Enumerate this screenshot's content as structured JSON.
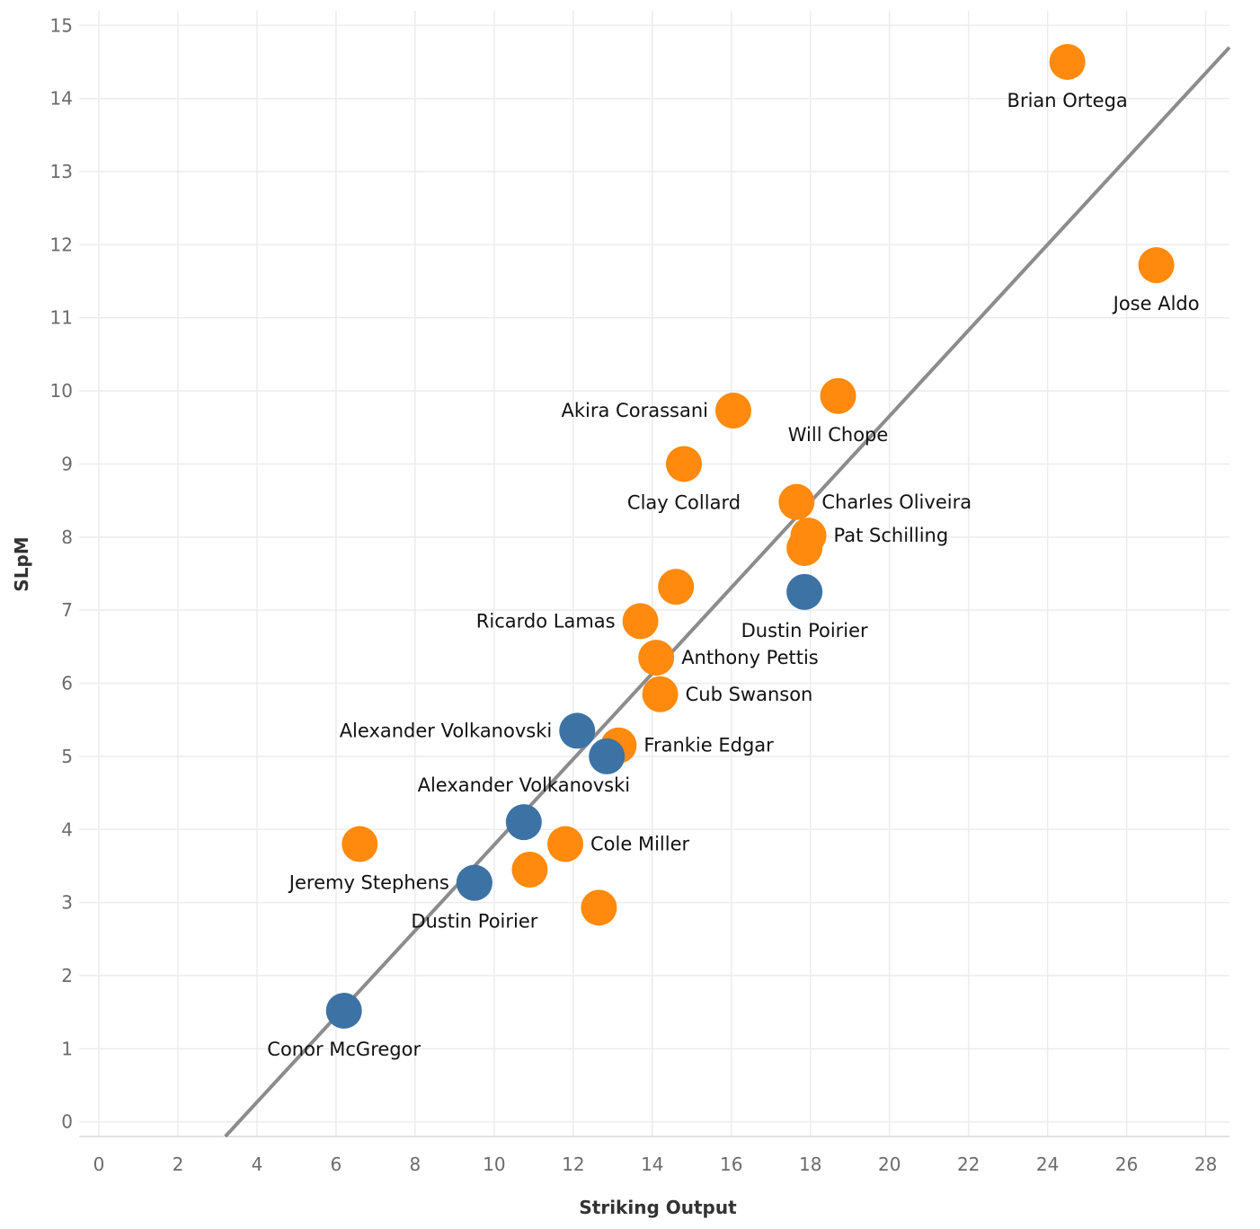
{
  "chart_data": {
    "type": "scatter",
    "title": "",
    "xlabel": "Striking Output",
    "ylabel": "SLpM",
    "xlim": [
      -0.5,
      28.6
    ],
    "ylim": [
      -0.2,
      15.2
    ],
    "x_ticks": [
      0,
      2,
      4,
      6,
      8,
      10,
      12,
      14,
      16,
      18,
      20,
      22,
      24,
      26,
      28
    ],
    "y_ticks": [
      0,
      1,
      2,
      3,
      4,
      5,
      6,
      7,
      8,
      9,
      10,
      11,
      12,
      13,
      14,
      15
    ],
    "grid": true,
    "legend": "none",
    "trend_line": {
      "x": [
        3.2,
        28.6
      ],
      "y": [
        -0.2,
        14.7
      ]
    },
    "colors": {
      "orange": "#ff8a0d",
      "blue": "#3d72a4",
      "trend": "#8c8c8c"
    },
    "series": [
      {
        "color": "orange",
        "points": [
          {
            "x": 24.5,
            "y": 14.5,
            "label": "Brian Ortega",
            "label_pos": "below"
          },
          {
            "x": 26.75,
            "y": 11.72,
            "label": "Jose Aldo",
            "label_pos": "below"
          },
          {
            "x": 18.7,
            "y": 9.93,
            "label": "Will Chope",
            "label_pos": "below"
          },
          {
            "x": 16.05,
            "y": 9.73,
            "label": "Akira Corassani",
            "label_pos": "left"
          },
          {
            "x": 14.8,
            "y": 9.0,
            "label": "Clay Collard",
            "label_pos": "below"
          },
          {
            "x": 17.65,
            "y": 8.48,
            "label": "Charles Oliveira",
            "label_pos": "right"
          },
          {
            "x": 17.95,
            "y": 8.02,
            "label": "Pat Schilling",
            "label_pos": "right"
          },
          {
            "x": 17.85,
            "y": 7.85,
            "label": "",
            "label_pos": "none"
          },
          {
            "x": 14.6,
            "y": 7.32,
            "label": "",
            "label_pos": "none"
          },
          {
            "x": 13.7,
            "y": 6.85,
            "label": "Ricardo Lamas",
            "label_pos": "left"
          },
          {
            "x": 14.1,
            "y": 6.35,
            "label": "Anthony Pettis",
            "label_pos": "right"
          },
          {
            "x": 14.2,
            "y": 5.85,
            "label": "Cub Swanson",
            "label_pos": "right"
          },
          {
            "x": 13.15,
            "y": 5.15,
            "label": "Frankie Edgar",
            "label_pos": "right"
          },
          {
            "x": 6.6,
            "y": 3.8,
            "label": "",
            "label_pos": "none"
          },
          {
            "x": 11.8,
            "y": 3.8,
            "label": "Cole Miller",
            "label_pos": "right"
          },
          {
            "x": 10.9,
            "y": 3.45,
            "label": "",
            "label_pos": "none"
          },
          {
            "x": 12.65,
            "y": 2.93,
            "label": "",
            "label_pos": "none"
          }
        ]
      },
      {
        "color": "blue",
        "points": [
          {
            "x": 17.85,
            "y": 7.25,
            "label": "Dustin Poirier",
            "label_pos": "below"
          },
          {
            "x": 12.1,
            "y": 5.35,
            "label": "Alexander Volkanovski",
            "label_pos": "left"
          },
          {
            "x": 12.85,
            "y": 5.0,
            "label": "",
            "label_pos": "none"
          },
          {
            "x": 10.75,
            "y": 4.1,
            "label": "Alexander Volkanovski",
            "label_pos": "above"
          },
          {
            "x": 9.5,
            "y": 3.27,
            "label": "Jeremy Stephens",
            "label_pos": "left"
          },
          {
            "x": 9.5,
            "y": 3.27,
            "label": "Dustin Poirier",
            "label_pos": "below"
          },
          {
            "x": 6.2,
            "y": 1.52,
            "label": "Conor McGregor",
            "label_pos": "below"
          }
        ]
      }
    ]
  }
}
